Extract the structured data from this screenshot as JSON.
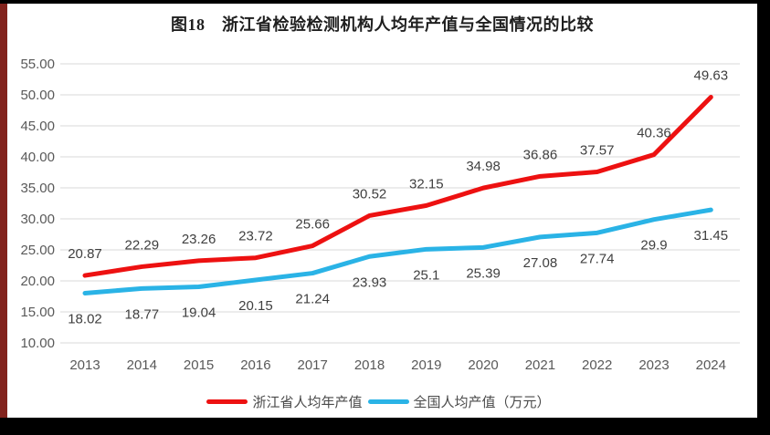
{
  "frame": {
    "background": "#ffffff",
    "left_strip_color": "#82231d",
    "border_color": "#000000"
  },
  "chart_data": {
    "type": "line",
    "title": "图18　浙江省检验检测机构人均年产值与全国情况的比较",
    "xlabel": "",
    "ylabel": "",
    "categories": [
      "2013",
      "2014",
      "2015",
      "2016",
      "2017",
      "2018",
      "2019",
      "2020",
      "2021",
      "2022",
      "2023",
      "2024"
    ],
    "series": [
      {
        "name": "浙江省人均年产值",
        "color": "#ed1111",
        "data_labels": "above",
        "values": [
          20.87,
          22.29,
          23.26,
          23.72,
          25.66,
          30.52,
          32.15,
          34.98,
          36.86,
          37.57,
          40.36,
          49.63
        ]
      },
      {
        "name": "全国人均产值（万元）",
        "color": "#2ab3e6",
        "data_labels": "below",
        "values": [
          18.02,
          18.77,
          19.04,
          20.15,
          21.24,
          23.93,
          25.1,
          25.39,
          27.08,
          27.74,
          29.9,
          31.45
        ]
      }
    ],
    "ylim": [
      10,
      55
    ],
    "ytick_step": 5,
    "ytick_label_format": "two_decimals",
    "grid": true,
    "legend_position": "bottom",
    "styles": {
      "gridline_color": "#d9d9d9",
      "axis_label_color": "#595959",
      "data_label_color": "#3f3f3f",
      "line_width": 5,
      "label_font_size": 15
    }
  }
}
